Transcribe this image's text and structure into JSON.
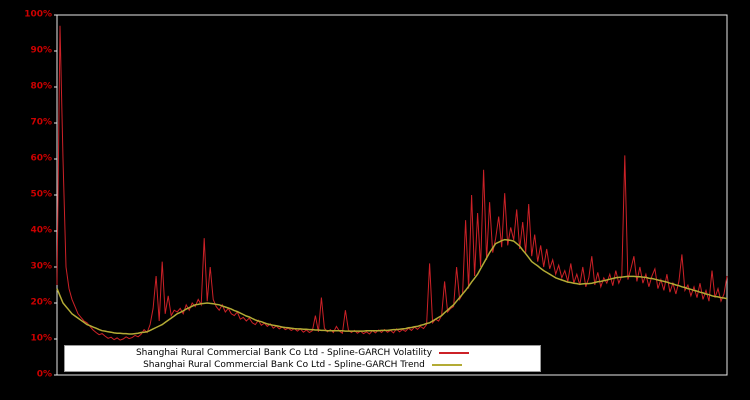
{
  "chart_data": {
    "type": "line",
    "title": "",
    "xlabel": "",
    "ylabel": "",
    "ylim": [
      0,
      100
    ],
    "units": "percent",
    "grid": false,
    "background": "#000000",
    "axis_color": "#e8e8e8",
    "tick_label_color": "#cc0000",
    "legend_position": "bottom-center",
    "y_ticks": [
      "0%",
      "10%",
      "20%",
      "30%",
      "40%",
      "50%",
      "60%",
      "70%",
      "80%",
      "90%",
      "100%"
    ],
    "x_tick_labels": [],
    "series": [
      {
        "name": "Shanghai Rural Commercial Bank Co Ltd - Spline-GARCH Volatility",
        "color": "#cc2127",
        "values": [
          25.0,
          97.0,
          60.0,
          30.0,
          24.0,
          21.0,
          19.0,
          17.0,
          16.0,
          15.0,
          14.5,
          13.5,
          12.5,
          11.8,
          11.2,
          11.5,
          10.8,
          10.2,
          10.5,
          9.8,
          10.3,
          9.7,
          10.0,
          10.6,
          10.1,
          10.4,
          11.0,
          10.6,
          11.3,
          12.6,
          11.8,
          14.0,
          18.5,
          27.5,
          15.0,
          31.5,
          17.0,
          22.0,
          16.5,
          18.0,
          17.5,
          18.5,
          17.0,
          19.5,
          18.0,
          20.0,
          19.0,
          21.0,
          19.5,
          38.0,
          20.5,
          30.0,
          21.0,
          19.0,
          18.0,
          19.5,
          17.5,
          18.5,
          17.0,
          16.5,
          17.5,
          15.5,
          16.0,
          15.0,
          15.8,
          14.5,
          14.0,
          15.2,
          13.8,
          14.4,
          13.5,
          14.2,
          13.0,
          13.6,
          12.8,
          13.4,
          12.6,
          13.0,
          12.4,
          12.9,
          12.2,
          12.8,
          11.9,
          12.5,
          11.8,
          12.3,
          16.5,
          12.0,
          21.5,
          13.0,
          12.0,
          12.6,
          11.8,
          13.5,
          12.2,
          11.6,
          18.0,
          12.5,
          11.8,
          12.4,
          11.6,
          12.2,
          11.5,
          12.0,
          11.4,
          12.3,
          11.7,
          12.5,
          11.8,
          12.6,
          11.9,
          12.4,
          11.7,
          12.8,
          12.0,
          12.6,
          12.1,
          13.0,
          12.4,
          13.3,
          12.7,
          13.5,
          12.9,
          14.0,
          31.0,
          14.5,
          15.5,
          15.0,
          16.5,
          26.0,
          17.5,
          18.5,
          19.0,
          30.0,
          21.0,
          22.5,
          43.0,
          24.0,
          50.0,
          27.5,
          45.0,
          30.0,
          57.0,
          32.0,
          48.0,
          34.0,
          38.0,
          44.0,
          35.5,
          50.5,
          36.0,
          41.0,
          37.5,
          46.0,
          35.0,
          42.5,
          34.0,
          47.5,
          33.0,
          39.0,
          31.5,
          36.0,
          30.0,
          35.0,
          29.5,
          32.0,
          28.0,
          30.5,
          27.0,
          29.0,
          26.0,
          31.0,
          25.5,
          28.0,
          25.0,
          30.0,
          24.5,
          27.0,
          33.0,
          25.0,
          28.5,
          24.5,
          27.0,
          25.5,
          28.0,
          24.8,
          29.0,
          25.5,
          27.5,
          61.0,
          26.5,
          29.5,
          33.0,
          26.0,
          30.0,
          25.5,
          28.0,
          24.5,
          27.5,
          29.5,
          24.0,
          26.5,
          23.5,
          28.0,
          23.0,
          25.5,
          22.5,
          26.0,
          33.5,
          23.5,
          25.0,
          22.0,
          24.5,
          21.5,
          25.5,
          21.0,
          23.5,
          20.5,
          29.0,
          21.5,
          24.0,
          20.5,
          22.5,
          27.5
        ]
      },
      {
        "name": "Shanghai Rural Commercial Bank Co Ltd - Spline-GARCH Trend",
        "color": "#b3ab35",
        "values": [
          24.0,
          22.0,
          20.0,
          19.0,
          18.0,
          17.0,
          16.4,
          15.8,
          15.2,
          14.6,
          14.0,
          13.7,
          13.3,
          13.0,
          12.6,
          12.3,
          12.2,
          12.0,
          11.9,
          11.7,
          11.6,
          11.6,
          11.5,
          11.5,
          11.4,
          11.4,
          11.5,
          11.6,
          11.8,
          11.9,
          12.0,
          12.4,
          12.8,
          13.2,
          13.6,
          14.0,
          14.6,
          15.2,
          15.8,
          16.4,
          17.0,
          17.4,
          17.8,
          18.3,
          18.7,
          19.1,
          19.5,
          19.6,
          19.8,
          19.9,
          20.0,
          19.9,
          19.8,
          19.6,
          19.5,
          19.2,
          18.9,
          18.6,
          18.3,
          17.9,
          17.6,
          17.2,
          16.8,
          16.4,
          16.1,
          15.7,
          15.3,
          15.0,
          14.8,
          14.5,
          14.2,
          14.0,
          13.8,
          13.7,
          13.5,
          13.3,
          13.2,
          13.1,
          13.0,
          12.9,
          12.8,
          12.8,
          12.7,
          12.7,
          12.6,
          12.6,
          12.5,
          12.5,
          12.4,
          12.4,
          12.3,
          12.3,
          12.3,
          12.3,
          12.3,
          12.3,
          12.2,
          12.2,
          12.2,
          12.2,
          12.2,
          12.2,
          12.2,
          12.3,
          12.3,
          12.3,
          12.3,
          12.3,
          12.4,
          12.4,
          12.4,
          12.5,
          12.6,
          12.6,
          12.7,
          12.8,
          12.9,
          13.1,
          13.2,
          13.4,
          13.5,
          13.8,
          14.0,
          14.3,
          14.5,
          15.0,
          15.5,
          16.0,
          16.5,
          17.3,
          18.0,
          18.8,
          19.5,
          20.5,
          21.5,
          22.5,
          23.5,
          24.6,
          25.8,
          26.9,
          28.0,
          29.5,
          31.0,
          32.5,
          34.0,
          35.3,
          36.5,
          36.9,
          37.3,
          37.6,
          37.5,
          37.4,
          37.2,
          36.5,
          35.8,
          34.7,
          33.7,
          32.6,
          31.5,
          30.9,
          30.3,
          29.6,
          29.0,
          28.5,
          28.0,
          27.5,
          27.0,
          26.7,
          26.4,
          26.1,
          25.8,
          25.7,
          25.5,
          25.4,
          25.2,
          25.3,
          25.4,
          25.4,
          25.5,
          25.7,
          25.9,
          26.0,
          26.2,
          26.4,
          26.6,
          26.8,
          27.0,
          27.1,
          27.2,
          27.3,
          27.4,
          27.4,
          27.4,
          27.3,
          27.3,
          27.2,
          27.1,
          26.9,
          26.8,
          26.6,
          26.4,
          26.2,
          26.0,
          25.8,
          25.5,
          25.3,
          25.0,
          24.8,
          24.5,
          24.3,
          24.0,
          23.8,
          23.5,
          23.3,
          23.0,
          22.8,
          22.5,
          22.3,
          22.0,
          21.8,
          21.7,
          21.5,
          21.4,
          21.2
        ]
      }
    ]
  }
}
